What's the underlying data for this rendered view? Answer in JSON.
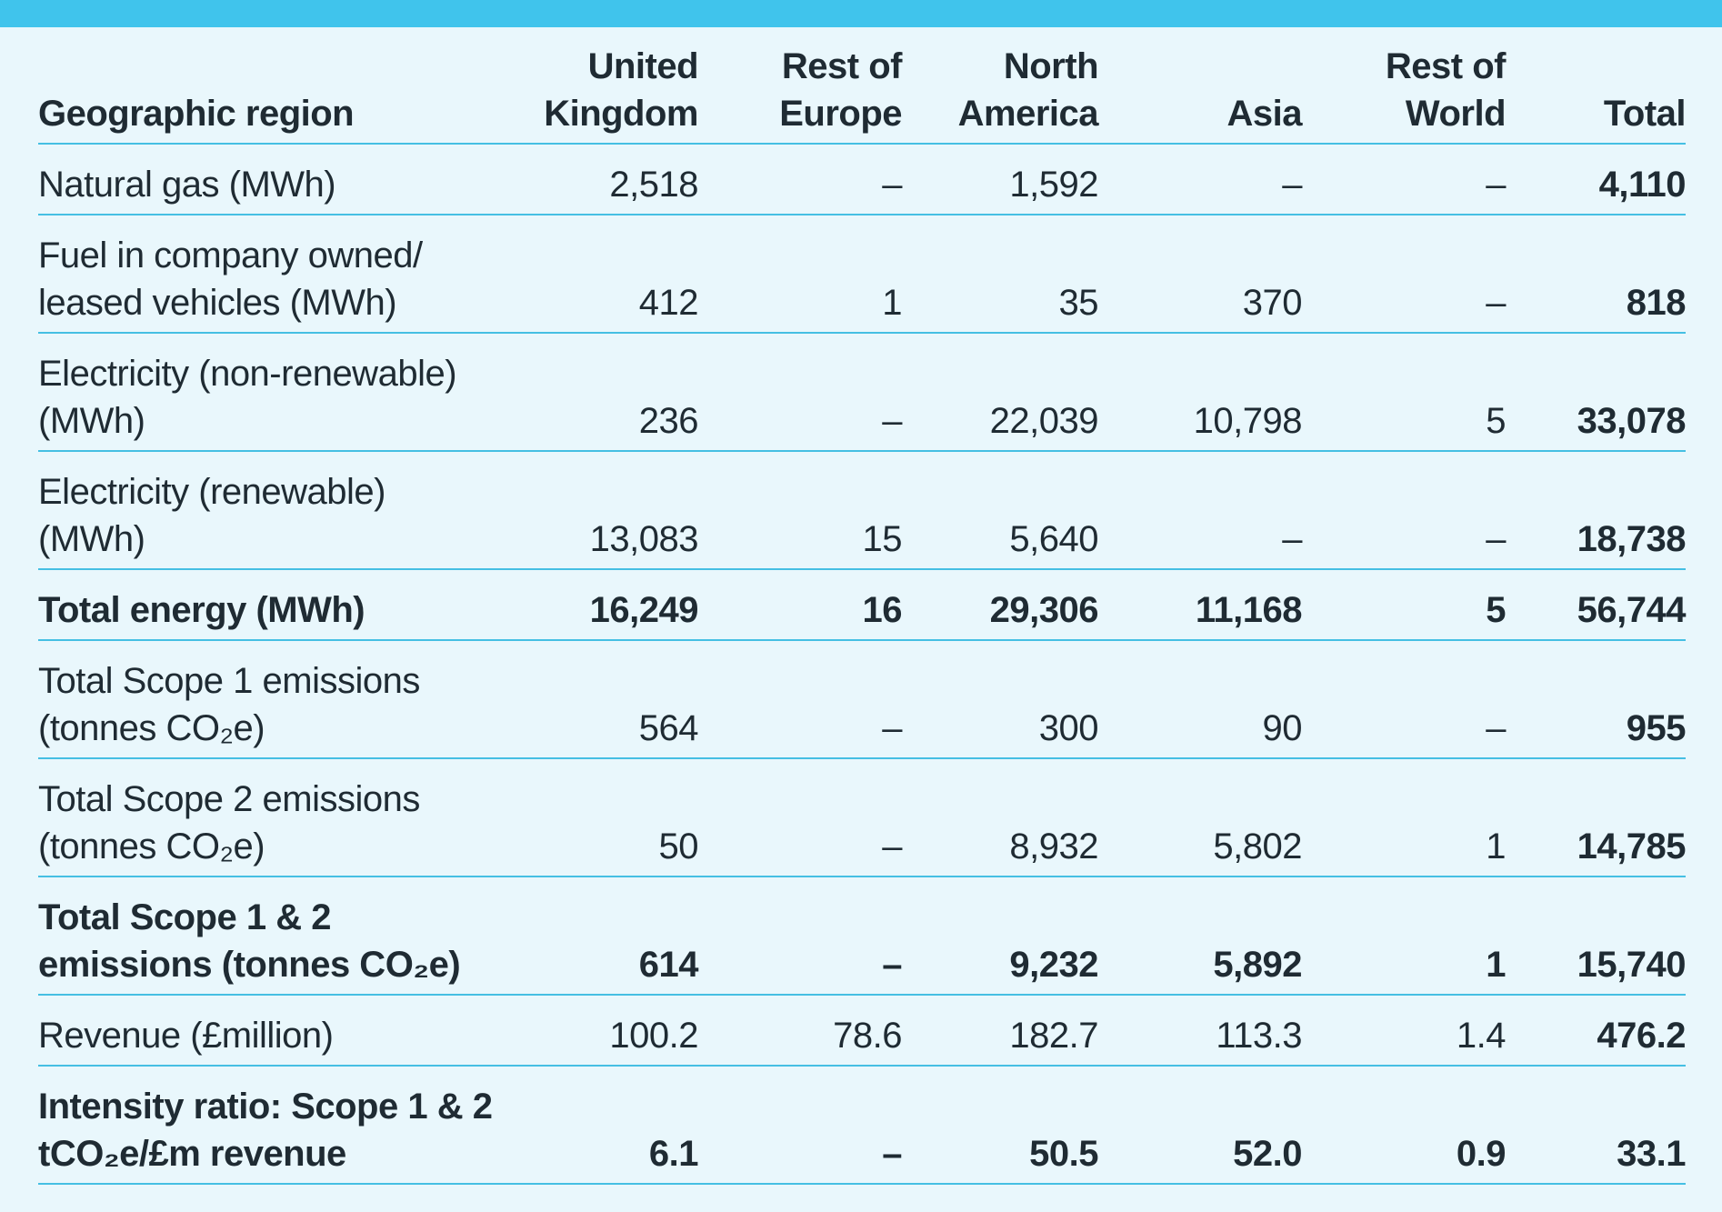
{
  "table": {
    "headers": [
      "Geographic region",
      "United Kingdom",
      "Rest of Europe",
      "North America",
      "Asia",
      "Rest of World",
      "Total"
    ],
    "rows": [
      {
        "label": "Natural gas (MWh)",
        "values": [
          "2,518",
          "–",
          "1,592",
          "–",
          "–",
          "4,110"
        ]
      },
      {
        "label": "Fuel in company owned/ leased vehicles (MWh)",
        "values": [
          "412",
          "1",
          "35",
          "370",
          "–",
          "818"
        ]
      },
      {
        "label": "Electricity (non-renewable) (MWh)",
        "values": [
          "236",
          "–",
          "22,039",
          "10,798",
          "5",
          "33,078"
        ]
      },
      {
        "label": "Electricity (renewable) (MWh)",
        "values": [
          "13,083",
          "15",
          "5,640",
          "–",
          "–",
          "18,738"
        ]
      },
      {
        "label": "Total energy (MWh)",
        "values": [
          "16,249",
          "16",
          "29,306",
          "11,168",
          "5",
          "56,744"
        ]
      },
      {
        "label": "Total Scope 1 emissions (tonnes CO₂e)",
        "values": [
          "564",
          "–",
          "300",
          "90",
          "–",
          "955"
        ]
      },
      {
        "label": "Total Scope 2 emissions (tonnes CO₂e)",
        "values": [
          "50",
          "–",
          "8,932",
          "5,802",
          "1",
          "14,785"
        ]
      },
      {
        "label": "Total Scope 1 & 2 emissions (tonnes CO₂e)",
        "values": [
          "614",
          "–",
          "9,232",
          "5,892",
          "1",
          "15,740"
        ]
      },
      {
        "label": "Revenue (£million)",
        "values": [
          "100.2",
          "78.6",
          "182.7",
          "113.3",
          "1.4",
          "476.2"
        ]
      },
      {
        "label": "Intensity ratio: Scope 1 & 2 tCO₂e/£m revenue",
        "values": [
          "6.1",
          "–",
          "50.5",
          "52.0",
          "0.9",
          "33.1"
        ]
      }
    ]
  },
  "colors": {
    "accent": "#40c4ec",
    "background": "#e9f7fc",
    "rule": "#45bfe3",
    "text": "#1f2b33"
  }
}
